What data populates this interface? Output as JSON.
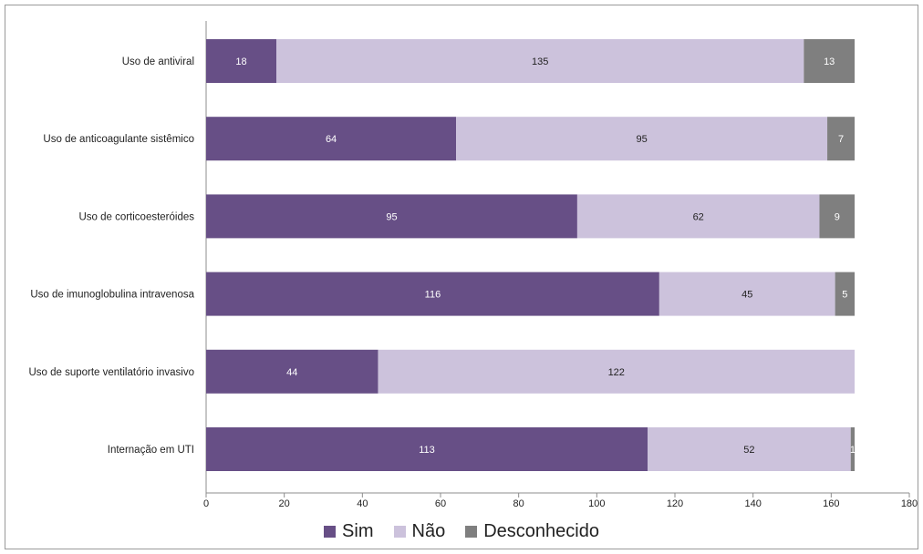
{
  "chart_data": {
    "type": "bar",
    "orientation": "horizontal",
    "stacked": true,
    "categories": [
      "Uso de antiviral",
      "Uso de anticoagulante sistêmico",
      "Uso de corticoesteróides",
      "Uso de imunoglobulina intravenosa",
      "Uso de suporte ventilatório invasivo",
      "Internação em UTI"
    ],
    "series": [
      {
        "name": "Sim",
        "color": "#674f86",
        "label_color": "#ffffff",
        "values": [
          18,
          64,
          95,
          116,
          44,
          113
        ],
        "labels": [
          "18",
          "64",
          "95",
          "116",
          "44",
          "113"
        ]
      },
      {
        "name": "Não",
        "color": "#ccc2dc",
        "label_color": "#222222",
        "values": [
          135,
          95,
          62,
          45,
          122,
          52
        ],
        "labels": [
          "135",
          "95",
          "62",
          "45",
          "122",
          "52"
        ]
      },
      {
        "name": "Desconhecido",
        "color": "#7f7f7f",
        "label_color": "#ffffff",
        "values": [
          13,
          7,
          9,
          5,
          0,
          1
        ],
        "labels": [
          "13",
          "7",
          "9",
          "5",
          "",
          "1"
        ]
      }
    ],
    "xlim": [
      0,
      180
    ],
    "xticks": [
      0,
      20,
      40,
      60,
      80,
      100,
      120,
      140,
      160,
      180
    ],
    "xtick_labels": [
      "0",
      "20",
      "40",
      "60",
      "80",
      "100",
      "120",
      "140",
      "160",
      "180"
    ],
    "grid": false,
    "legend_position": "bottom",
    "title": "",
    "xlabel": "",
    "ylabel": ""
  }
}
